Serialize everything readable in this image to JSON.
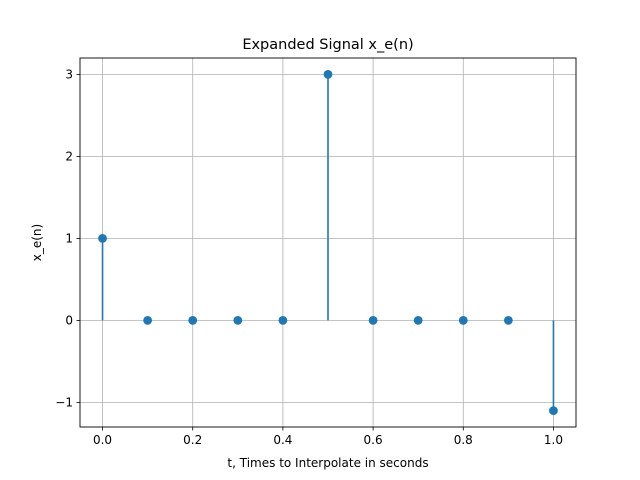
{
  "chart_data": {
    "type": "stem",
    "title": "Expanded Signal x_e(n)",
    "xlabel": "t, Times to Interpolate in seconds",
    "ylabel": "x_e(n)",
    "x": [
      0.0,
      0.1,
      0.2,
      0.3,
      0.4,
      0.5,
      0.6,
      0.7,
      0.8,
      0.9,
      1.0
    ],
    "y": [
      1,
      0,
      0,
      0,
      0,
      3,
      0,
      0,
      0,
      0,
      -1.1
    ],
    "xlim": [
      -0.05,
      1.05
    ],
    "ylim": [
      -1.3,
      3.2
    ],
    "xticks": [
      0.0,
      0.2,
      0.4,
      0.6,
      0.8,
      1.0
    ],
    "xtick_labels": [
      "0.0",
      "0.2",
      "0.4",
      "0.6",
      "0.8",
      "1.0"
    ],
    "yticks": [
      -1,
      0,
      1,
      2,
      3
    ],
    "ytick_labels": [
      "−1",
      "0",
      "1",
      "2",
      "3"
    ],
    "grid": true,
    "color": "#1f77b4"
  }
}
